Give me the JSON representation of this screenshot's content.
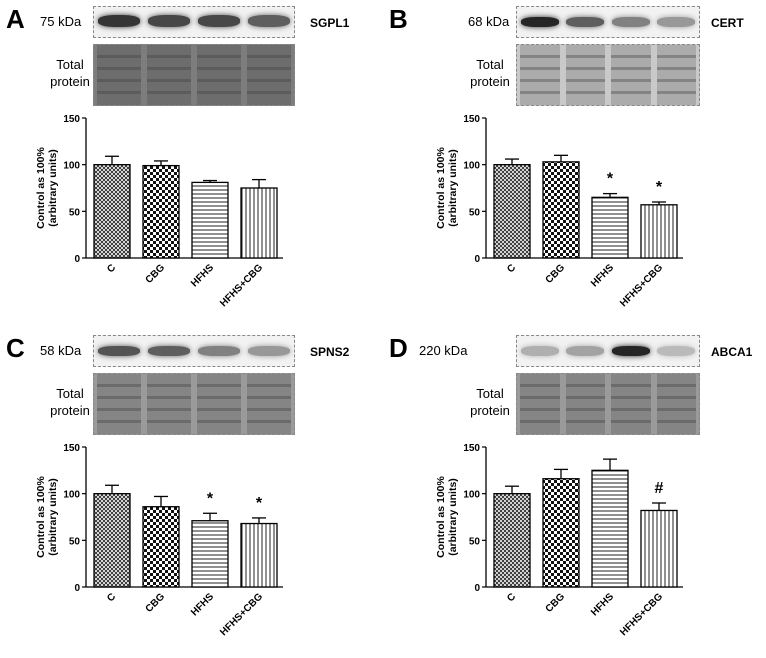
{
  "colors": {
    "bar_fill": "#ffffff",
    "bar_stroke": "#000000",
    "blot_bg": "#f2f2f2",
    "total_bg": "#8d8d8d"
  },
  "patterns": [
    "crosshatch-fine",
    "checkerboard",
    "horizontal-lines",
    "vertical-lines"
  ],
  "total_protein_label": [
    "Total",
    "protein"
  ],
  "chart_data": [
    {
      "panel": "A",
      "protein": "SGPL1",
      "kda": "75 kDa",
      "type": "bar",
      "categories": [
        "C",
        "CBG",
        "HFHS",
        "HFHS+CBG"
      ],
      "values": [
        100,
        99,
        81,
        75
      ],
      "errors": [
        9,
        5,
        2,
        9
      ],
      "annotations": [
        "",
        "",
        "",
        ""
      ],
      "ylabel": [
        "Control as 100%",
        "(arbitrary units)"
      ],
      "ylim": [
        0,
        150
      ],
      "yticks": [
        0,
        50,
        100,
        150
      ],
      "band_intensity": [
        0.88,
        0.8,
        0.8,
        0.7
      ]
    },
    {
      "panel": "B",
      "protein": "CERT",
      "kda": "68 kDa",
      "type": "bar",
      "categories": [
        "C",
        "CBG",
        "HFHS",
        "HFHS+CBG"
      ],
      "values": [
        100,
        103,
        65,
        57
      ],
      "errors": [
        6,
        7,
        4,
        3
      ],
      "annotations": [
        "",
        "",
        "*",
        "*"
      ],
      "ylabel": [
        "Control as 100%",
        "(arbitrary units)"
      ],
      "ylim": [
        0,
        150
      ],
      "yticks": [
        0,
        50,
        100,
        150
      ],
      "band_intensity": [
        0.95,
        0.7,
        0.55,
        0.45
      ]
    },
    {
      "panel": "C",
      "protein": "SPNS2",
      "kda": "58 kDa",
      "type": "bar",
      "categories": [
        "C",
        "CBG",
        "HFHS",
        "HFHS+CBG"
      ],
      "values": [
        100,
        86,
        71,
        68
      ],
      "errors": [
        9,
        11,
        8,
        6
      ],
      "annotations": [
        "",
        "",
        "*",
        "*"
      ],
      "ylabel": [
        "Control as 100%",
        "(arbitrary units)"
      ],
      "ylim": [
        0,
        150
      ],
      "yticks": [
        0,
        50,
        100,
        150
      ],
      "band_intensity": [
        0.75,
        0.7,
        0.55,
        0.45
      ]
    },
    {
      "panel": "D",
      "protein": "ABCA1",
      "kda": "220 kDa",
      "type": "bar",
      "categories": [
        "C",
        "CBG",
        "HFHS",
        "HFHS+CBG"
      ],
      "values": [
        100,
        116,
        125,
        82
      ],
      "errors": [
        8,
        10,
        12,
        8
      ],
      "annotations": [
        "",
        "",
        "",
        "#"
      ],
      "ylabel": [
        "Control as 100%",
        "(arbitrary units)"
      ],
      "ylim": [
        0,
        150
      ],
      "yticks": [
        0,
        50,
        100,
        150
      ],
      "band_intensity": [
        0.35,
        0.4,
        0.95,
        0.3
      ]
    }
  ]
}
